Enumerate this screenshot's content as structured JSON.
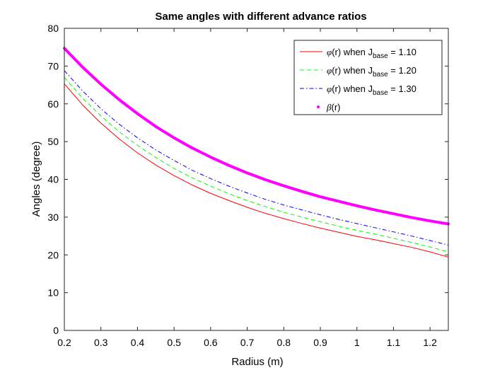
{
  "chart_data": {
    "type": "line",
    "title": "Same angles with different advance ratios",
    "xlabel": "Radius (m)",
    "ylabel": "Angles (degree)",
    "xlim": [
      0.2,
      1.25
    ],
    "ylim": [
      0,
      80
    ],
    "xticks": [
      0.2,
      0.3,
      0.4,
      0.5,
      0.6,
      0.7,
      0.8,
      0.9,
      1,
      1.1,
      1.2
    ],
    "xtick_labels": [
      "0.2",
      "0.3",
      "0.4",
      "0.5",
      "0.6",
      "0.7",
      "0.8",
      "0.9",
      "1",
      "1.1",
      "1.2"
    ],
    "yticks": [
      0,
      10,
      20,
      30,
      40,
      50,
      60,
      70,
      80
    ],
    "ytick_labels": [
      "0",
      "10",
      "20",
      "30",
      "40",
      "50",
      "60",
      "70",
      "80"
    ],
    "grid": false,
    "legend_position": "top-right",
    "x": [
      0.2,
      0.25,
      0.3,
      0.35,
      0.4,
      0.45,
      0.5,
      0.55,
      0.6,
      0.65,
      0.7,
      0.75,
      0.8,
      0.85,
      0.9,
      0.95,
      1.0,
      1.05,
      1.1,
      1.15,
      1.2,
      1.25
    ],
    "series": [
      {
        "name": "when J = 1.10",
        "color": "#ff0000",
        "style": "solid",
        "values": [
          65.3,
          59.7,
          54.9,
          50.7,
          47.0,
          43.8,
          41.0,
          38.5,
          36.3,
          34.4,
          32.6,
          31.0,
          29.6,
          28.3,
          27.1,
          26.0,
          24.9,
          24.0,
          23.0,
          22.0,
          20.8,
          19.4
        ]
      },
      {
        "name": "when J = 1.20",
        "color": "#00ff00",
        "style": "dashed",
        "values": [
          67.0,
          61.5,
          56.8,
          52.6,
          49.0,
          45.8,
          42.9,
          40.4,
          38.2,
          36.2,
          34.4,
          32.8,
          31.3,
          30.0,
          28.8,
          27.6,
          26.5,
          25.5,
          24.4,
          23.3,
          22.1,
          20.8
        ]
      },
      {
        "name": "when J = 1.30",
        "color": "#0000ff",
        "style": "dashdot",
        "values": [
          68.8,
          63.4,
          58.7,
          54.6,
          51.0,
          47.8,
          45.0,
          42.4,
          40.2,
          38.2,
          36.4,
          34.7,
          33.2,
          31.9,
          30.6,
          29.4,
          28.3,
          27.2,
          26.1,
          25.0,
          23.8,
          22.6
        ]
      },
      {
        "name": "(r)",
        "color": "#ff00ff",
        "style": "dots",
        "values": [
          74.7,
          69.7,
          65.2,
          61.1,
          57.4,
          54.0,
          51.0,
          48.3,
          45.9,
          43.7,
          41.7,
          39.9,
          38.3,
          36.8,
          35.4,
          34.2,
          33.0,
          31.9,
          30.9,
          29.9,
          29.0,
          28.2
        ]
      }
    ],
    "legend": {
      "entries": [
        {
          "symbol": "φ",
          "text": "(r) when J",
          "sub": "base",
          "suffix": " = 1.10"
        },
        {
          "symbol": "φ",
          "text": "(r) when J",
          "sub": "base",
          "suffix": " = 1.20"
        },
        {
          "symbol": "φ",
          "text": "(r) when J",
          "sub": "base",
          "suffix": " = 1.30"
        },
        {
          "symbol": "β",
          "text": "(r)",
          "sub": "",
          "suffix": ""
        }
      ]
    }
  }
}
